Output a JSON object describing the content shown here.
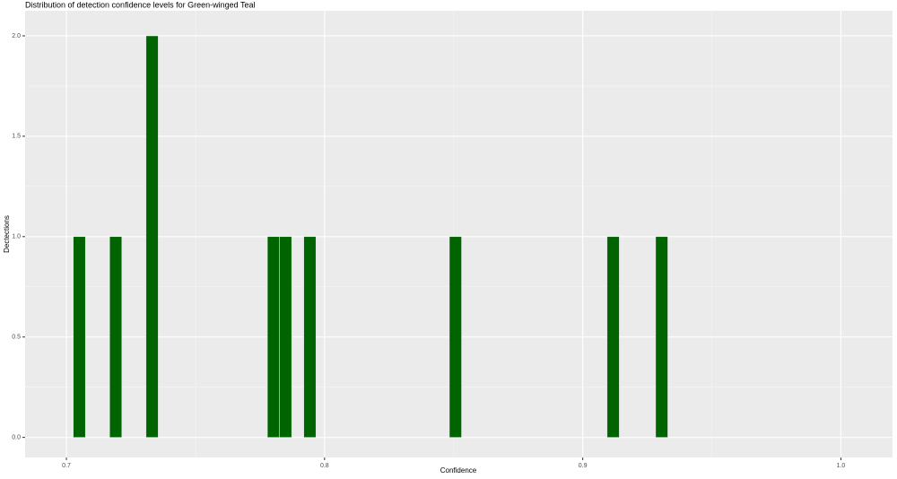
{
  "chart_data": {
    "type": "histogram",
    "title": "Distribution of detection confidence levels for Green-winged Teal",
    "x_label": "Confidence",
    "y_label": "Dectections",
    "bins": [
      0.70265,
      0.70735,
      0.71205,
      0.71675,
      0.72145,
      0.72615,
      0.73085,
      0.73555,
      0.74025,
      0.74495,
      0.74965,
      0.75435,
      0.75905,
      0.76375,
      0.76845,
      0.77315,
      0.77785,
      0.78255,
      0.78725,
      0.79195,
      0.79665,
      0.80135,
      0.80605,
      0.81075,
      0.81545,
      0.82015,
      0.82485,
      0.82955,
      0.83425,
      0.83895,
      0.84365,
      0.84835,
      0.85305,
      0.85775,
      0.86245,
      0.86715,
      0.87185,
      0.87655,
      0.88125,
      0.88595,
      0.89065,
      0.89535,
      0.90005,
      0.90475,
      0.90945,
      0.91415,
      0.91885,
      0.92355,
      0.92825,
      0.93295
    ],
    "values": [
      1,
      0,
      0,
      1,
      0,
      0,
      2,
      0,
      0,
      0,
      0,
      0,
      0,
      0,
      0,
      0,
      1,
      1,
      0,
      1,
      0,
      0,
      0,
      0,
      0,
      0,
      0,
      0,
      0,
      0,
      0,
      1,
      0,
      0,
      0,
      0,
      0,
      0,
      0,
      0,
      0,
      0,
      0,
      0,
      1,
      0,
      0,
      0,
      1
    ],
    "color": "#006400",
    "xlim": [
      0.684,
      1.02
    ],
    "ylim": [
      -0.1,
      2.125
    ],
    "xticks": [
      0.7,
      0.8,
      0.9,
      {
        "value": 1,
        "label": "1.0"
      }
    ],
    "yticks": [
      {
        "value": 0,
        "label": "0.0"
      },
      0.5,
      {
        "value": 1,
        "label": "1.0"
      },
      1.5,
      {
        "value": 2,
        "label": "2.0"
      }
    ],
    "grid": true,
    "minor_grid": true
  }
}
